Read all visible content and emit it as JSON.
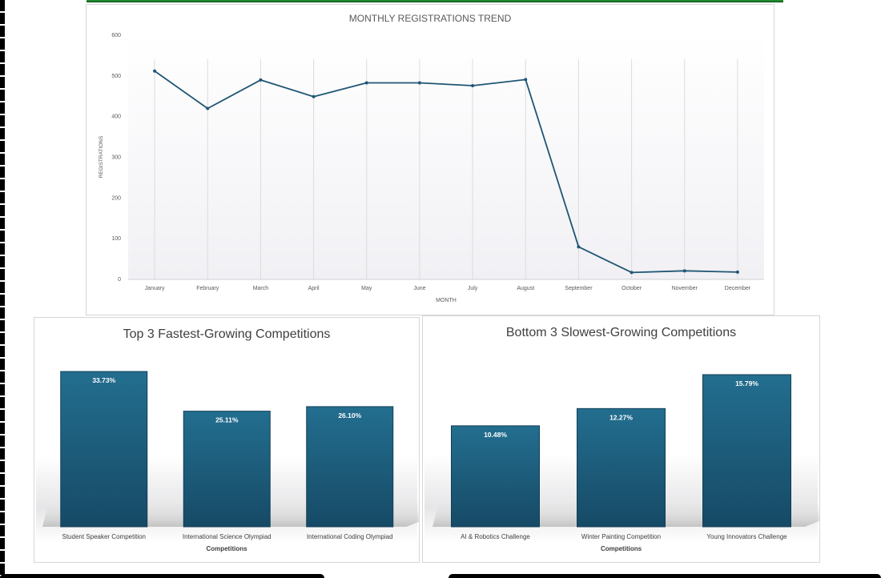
{
  "colors": {
    "line": "#1f5674",
    "bar_top": "#236e8f",
    "bar_bottom": "#164a66",
    "grid": "#dcdcdc",
    "text": "#595959"
  },
  "chart_data": [
    {
      "type": "line",
      "title": "MONTHLY REGISTRATIONS TREND",
      "xlabel": "MONTH",
      "ylabel": "REGISTRATIONS",
      "ylim": [
        0,
        600
      ],
      "yticks": [
        "0",
        "100",
        "200",
        "300",
        "400",
        "500",
        "600"
      ],
      "categories": [
        "January",
        "February",
        "March",
        "April",
        "May",
        "June",
        "July",
        "August",
        "September",
        "October",
        "November",
        "December"
      ],
      "values": [
        512,
        420,
        490,
        449,
        483,
        483,
        476,
        491,
        80,
        17,
        21,
        18
      ],
      "grid": "vertical"
    },
    {
      "type": "bar",
      "title": "Top 3 Fastest-Growing Competitions",
      "xlabel": "Competitions",
      "ylim": [
        0,
        36
      ],
      "categories": [
        "Student Speaker Competition",
        "International Science Olympiad",
        "International Coding Olympiad"
      ],
      "values": [
        33.73,
        25.11,
        26.1
      ],
      "labels": [
        "33.73%",
        "25.11%",
        "26.10%"
      ]
    },
    {
      "type": "bar",
      "title": "Bottom 3 Slowest-Growing Competitions",
      "xlabel": "Competitions",
      "ylim": [
        0,
        17.2
      ],
      "categories": [
        "AI & Robotics Challenge",
        "Winter Painting Competition",
        "Young Innovators Challenge"
      ],
      "values": [
        10.48,
        12.27,
        15.79
      ],
      "labels": [
        "10.48%",
        "12.27%",
        "15.79%"
      ]
    }
  ]
}
